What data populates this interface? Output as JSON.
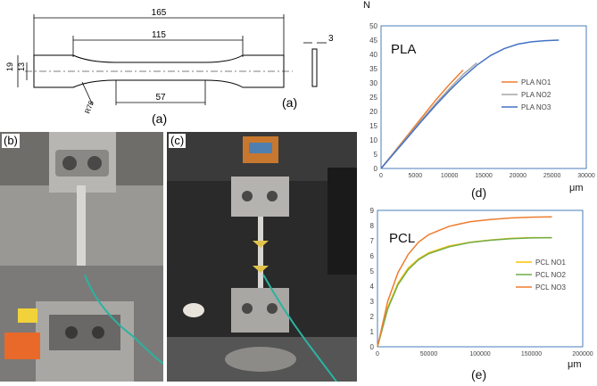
{
  "figure": {
    "drawing": {
      "dims": {
        "overall_length": "165",
        "gauge_length": "115",
        "parallel_length": "57",
        "width": "19",
        "narrow_width": "13",
        "thickness": "3",
        "radius": "R76"
      },
      "caption": "(a)",
      "caption_side": "(a)"
    },
    "photos": {
      "b_label": "(b)",
      "c_label": "(c)"
    },
    "charts": {
      "d_label": "(d)",
      "e_label": "(e)"
    }
  },
  "chart_data": [
    {
      "type": "line",
      "title": "PLA",
      "xlabel": "μm",
      "ylabel": "N",
      "xlim": [
        0,
        30000
      ],
      "ylim": [
        0,
        50
      ],
      "x_ticks": [
        "0",
        "5000",
        "10000",
        "15000",
        "20000",
        "25000",
        "30000"
      ],
      "y_ticks": [
        "0",
        "5",
        "10",
        "15",
        "20",
        "25",
        "30",
        "35",
        "40",
        "45",
        "50"
      ],
      "legend_position": "right",
      "grid": false,
      "series": [
        {
          "name": "PLA NO1",
          "color": "#ed7d31",
          "x": [
            0,
            2000,
            4000,
            6000,
            8000,
            10000,
            12000
          ],
          "y": [
            0,
            6,
            12,
            18,
            24,
            29.5,
            34.5
          ]
        },
        {
          "name": "PLA NO2",
          "color": "#a5a5a5",
          "x": [
            0,
            2000,
            4000,
            6000,
            8000,
            10000,
            12000,
            14000
          ],
          "y": [
            0,
            5.8,
            11.5,
            17.2,
            22.8,
            28,
            33,
            37
          ]
        },
        {
          "name": "PLA NO3",
          "color": "#4472c4",
          "x": [
            0,
            2000,
            4000,
            6000,
            8000,
            10000,
            12000,
            14000,
            16000,
            18000,
            20000,
            22000,
            24000,
            26000
          ],
          "y": [
            0,
            5.6,
            11.2,
            16.8,
            22.2,
            27.3,
            32,
            36.2,
            39.6,
            42,
            43.6,
            44.4,
            44.8,
            45
          ]
        }
      ]
    },
    {
      "type": "line",
      "title": "PCL",
      "xlabel": "μm",
      "ylabel": "N",
      "xlim": [
        0,
        200000
      ],
      "ylim": [
        0,
        9
      ],
      "x_ticks": [
        "0",
        "50000",
        "100000",
        "150000",
        "200000"
      ],
      "y_ticks": [
        "0",
        "1",
        "2",
        "3",
        "4",
        "5",
        "6",
        "7",
        "8",
        "9"
      ],
      "legend_position": "right",
      "grid": false,
      "series": [
        {
          "name": "PCL NO1",
          "color": "#ffc000",
          "x": [
            0,
            10000,
            20000,
            30000,
            40000,
            50000,
            70000,
            90000,
            110000,
            130000,
            150000,
            170000
          ],
          "y": [
            0,
            2.6,
            4.2,
            5.2,
            5.8,
            6.2,
            6.65,
            6.9,
            7.05,
            7.15,
            7.2,
            7.2
          ]
        },
        {
          "name": "PCL NO2",
          "color": "#70ad47",
          "x": [
            0,
            10000,
            20000,
            30000,
            40000,
            50000,
            70000,
            90000,
            110000,
            130000,
            150000,
            170000
          ],
          "y": [
            0,
            2.5,
            4.1,
            5.1,
            5.75,
            6.15,
            6.6,
            6.88,
            7.03,
            7.13,
            7.18,
            7.2
          ]
        },
        {
          "name": "PCL NO3",
          "color": "#ed7d31",
          "x": [
            0,
            10000,
            20000,
            30000,
            40000,
            50000,
            70000,
            90000,
            110000,
            130000,
            150000,
            170000
          ],
          "y": [
            0,
            3.0,
            4.9,
            6.1,
            6.9,
            7.4,
            7.95,
            8.25,
            8.4,
            8.5,
            8.55,
            8.57
          ]
        }
      ]
    }
  ]
}
